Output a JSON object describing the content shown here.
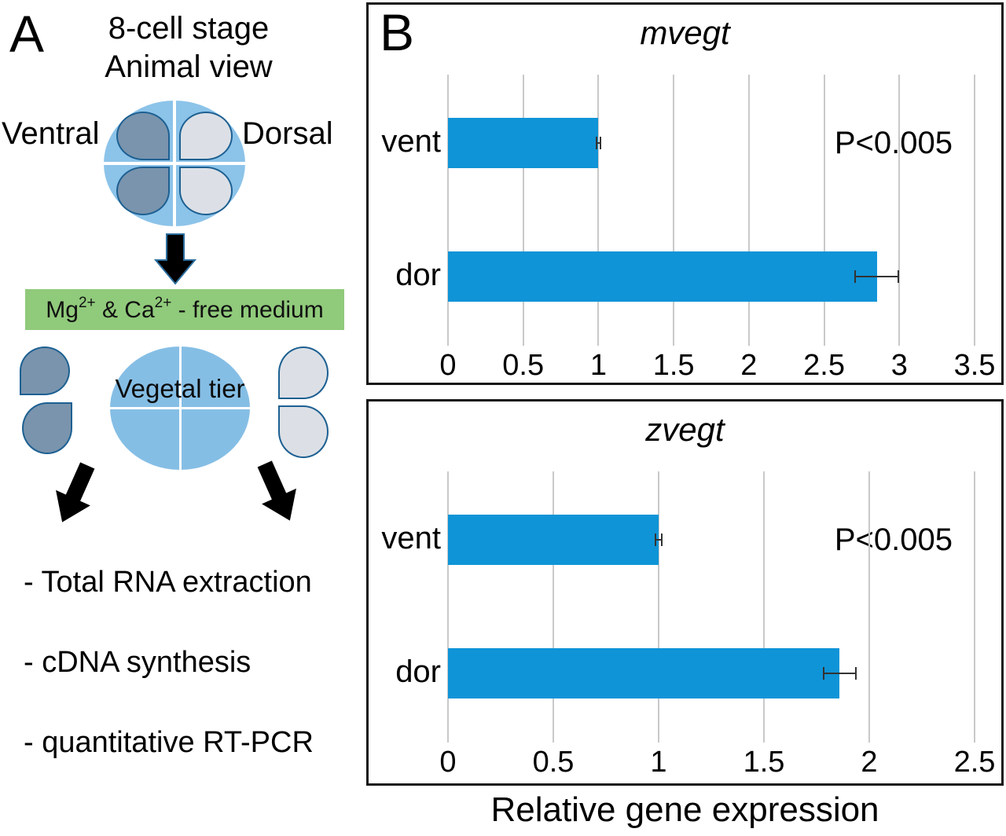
{
  "panel_a": {
    "label": "A",
    "title_line1": "8-cell stage",
    "title_line2": "Animal view",
    "ventral_label": "Ventral",
    "dorsal_label": "Dorsal",
    "medium": {
      "part1": "Mg",
      "sup1": "2+",
      "part2": " & Ca",
      "sup2": "2+",
      "part3": " - free medium"
    },
    "vegetal_label": "Vegetal tier",
    "steps": [
      "- Total RNA extraction",
      "- cDNA synthesis",
      "- quantitative RT-PCR"
    ]
  },
  "panel_b": {
    "label": "B",
    "xlabel": "Relative gene expression"
  },
  "chart_data": [
    {
      "type": "bar",
      "orientation": "horizontal",
      "title": "mvegt",
      "categories": [
        "vent",
        "dor"
      ],
      "values": [
        1.0,
        2.85
      ],
      "errors": [
        0.02,
        0.15
      ],
      "annotation": "P<0.005",
      "xlabel": "Relative gene expression",
      "xlim": [
        0,
        3.5
      ],
      "x_ticks": [
        "0",
        "0.5",
        "1",
        "1.5",
        "2",
        "2.5",
        "3",
        "3.5"
      ],
      "grid": true,
      "legend": false
    },
    {
      "type": "bar",
      "orientation": "horizontal",
      "title": "zvegt",
      "categories": [
        "vent",
        "dor"
      ],
      "values": [
        1.0,
        1.86
      ],
      "errors": [
        0.02,
        0.08
      ],
      "annotation": "P<0.005",
      "xlabel": "Relative gene expression",
      "xlim": [
        0,
        2.5
      ],
      "x_ticks": [
        "0",
        "0.5",
        "1",
        "1.5",
        "2",
        "2.5"
      ],
      "grid": true,
      "legend": false
    }
  ],
  "colors": {
    "embryo_blue": "#8CC3E9",
    "vegetal_blue": "#85BEE5",
    "ventral_fill": "#7A94AD",
    "dorsal_fill": "#DCE0E6",
    "cell_outline": "#1D6092",
    "medium_green": "#90CA7B",
    "bar_blue": "#0F94D7",
    "gridline_gray": "#C9C9C9",
    "error_dark": "#333333"
  }
}
